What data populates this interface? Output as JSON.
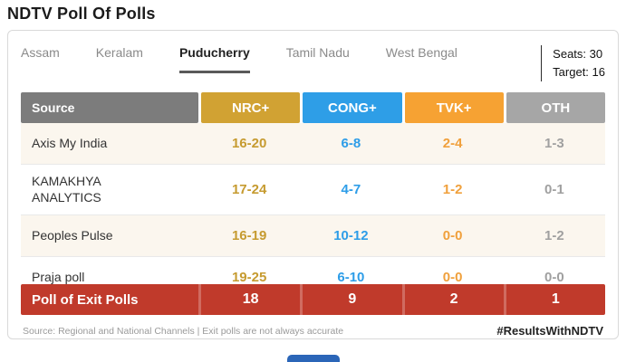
{
  "header": {
    "title": "NDTV Poll Of Polls"
  },
  "tabs": [
    {
      "label": "Assam",
      "active": false
    },
    {
      "label": "Keralam",
      "active": false
    },
    {
      "label": "Puducherry",
      "active": true
    },
    {
      "label": "Tamil Nadu",
      "active": false
    },
    {
      "label": "West Bengal",
      "active": false
    }
  ],
  "stats": {
    "seats": "Seats: 30",
    "target": "Target: 16"
  },
  "table": {
    "source_header": "Source",
    "parties": [
      {
        "label": "NRC+",
        "color": "#D1A233"
      },
      {
        "label": "CONG+",
        "color": "#2E9EE7"
      },
      {
        "label": "TVK+",
        "color": "#F6A233"
      },
      {
        "label": "OTH",
        "color": "#A6A6A6"
      }
    ],
    "rows": [
      {
        "source": "Axis My India",
        "values": [
          "16-20",
          "6-8",
          "2-4",
          "1-3"
        ]
      },
      {
        "source": "KAMAKHYA ANALYTICS",
        "values": [
          "17-24",
          "4-7",
          "1-2",
          "0-1"
        ]
      },
      {
        "source": "Peoples Pulse",
        "values": [
          "16-19",
          "10-12",
          "0-0",
          "1-2"
        ]
      },
      {
        "source": "Praja poll",
        "values": [
          "19-25",
          "6-10",
          "0-0",
          "0-0"
        ]
      }
    ],
    "summary": {
      "label": "Poll of Exit Polls",
      "values": [
        "18",
        "9",
        "2",
        "1"
      ],
      "color": "#C03A2B"
    }
  },
  "footer": {
    "disclaimer": "Source: Regional and National Channels | Exit polls are not always accurate",
    "hashtag": "#ResultsWithNDTV"
  }
}
